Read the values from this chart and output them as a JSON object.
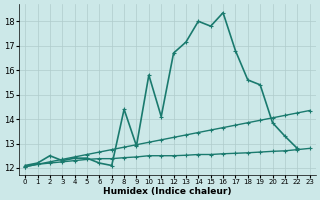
{
  "title": "",
  "xlabel": "Humidex (Indice chaleur)",
  "ylabel": "",
  "bg_color": "#cce8e8",
  "xlim": [
    -0.5,
    23.5
  ],
  "ylim": [
    11.7,
    18.7
  ],
  "xticks": [
    0,
    1,
    2,
    3,
    4,
    5,
    6,
    7,
    8,
    9,
    10,
    11,
    12,
    13,
    14,
    15,
    16,
    17,
    18,
    19,
    20,
    21,
    22,
    23
  ],
  "yticks": [
    12,
    13,
    14,
    15,
    16,
    17,
    18
  ],
  "line1_x": [
    0,
    1,
    2,
    3,
    4,
    5,
    6,
    7,
    8,
    9,
    10,
    11,
    12,
    13,
    14,
    15,
    16,
    17,
    18,
    19,
    20,
    21,
    22
  ],
  "line1_y": [
    12.1,
    12.2,
    12.5,
    12.3,
    12.4,
    12.4,
    12.2,
    12.1,
    14.4,
    12.9,
    15.8,
    14.1,
    16.7,
    17.15,
    18.0,
    17.8,
    18.35,
    16.8,
    15.6,
    15.4,
    13.85,
    13.3,
    12.8
  ],
  "line2_x": [
    0,
    1,
    2,
    3,
    4,
    5,
    6,
    7,
    8,
    9,
    10,
    11,
    12,
    13,
    14,
    15,
    16,
    17,
    18,
    19,
    20,
    21,
    22,
    23
  ],
  "line2_y": [
    12.05,
    12.15,
    12.25,
    12.35,
    12.45,
    12.55,
    12.65,
    12.75,
    12.85,
    12.95,
    13.05,
    13.15,
    13.25,
    13.35,
    13.45,
    13.55,
    13.65,
    13.75,
    13.85,
    13.95,
    14.05,
    14.15,
    14.25,
    14.35
  ],
  "line3_x": [
    0,
    1,
    2,
    3,
    4,
    5,
    6,
    7,
    8,
    9,
    10,
    11,
    12,
    13,
    14,
    15,
    16,
    17,
    18,
    19,
    20,
    21,
    22,
    23
  ],
  "line3_y": [
    12.05,
    12.15,
    12.2,
    12.25,
    12.3,
    12.35,
    12.38,
    12.38,
    12.42,
    12.45,
    12.5,
    12.5,
    12.5,
    12.52,
    12.55,
    12.55,
    12.58,
    12.6,
    12.62,
    12.65,
    12.68,
    12.7,
    12.75,
    12.8
  ],
  "line_color": "#1a7a6e",
  "line1_lw": 1.2,
  "line2_lw": 1.0,
  "line3_lw": 1.0,
  "marker": "+",
  "markersize": 3.0,
  "markeredgewidth": 0.8
}
